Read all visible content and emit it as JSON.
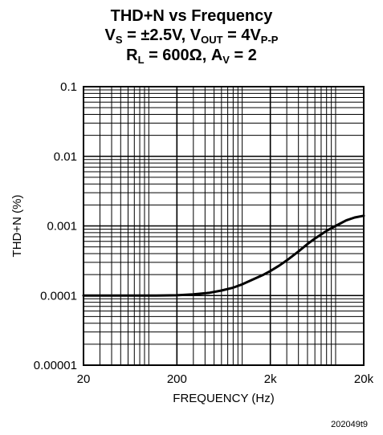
{
  "title": {
    "line1": "THD+N vs Frequency",
    "line2": {
      "a": "V",
      "a_sub": "S",
      "b": " = ±2.5V, V",
      "b_sub": "OUT",
      "c": " = 4V",
      "c_sub": "P-P"
    },
    "line3": {
      "a": "R",
      "a_sub": "L",
      "b": " = 600Ω, A",
      "b_sub": "V",
      "c": " = 2"
    }
  },
  "figure_code": "202049t9",
  "chart_data": {
    "type": "line",
    "xlabel": "FREQUENCY (Hz)",
    "ylabel": "THD+N (%)",
    "x_scale": "log",
    "y_scale": "log",
    "xlim": [
      20,
      20000
    ],
    "ylim": [
      1e-05,
      0.1
    ],
    "x_ticks": [
      20,
      200,
      2000,
      20000
    ],
    "x_tick_labels": [
      "20",
      "200",
      "2k",
      "20k"
    ],
    "y_ticks": [
      1e-05,
      0.0001,
      0.001,
      0.01,
      0.1
    ],
    "y_tick_labels": [
      "0.00001",
      "0.0001",
      "0.001",
      "0.01",
      "0.1"
    ],
    "grid": true,
    "series": [
      {
        "color": "#000000",
        "x": [
          20,
          30,
          50,
          80,
          120,
          200,
          300,
          450,
          600,
          800,
          1000,
          1300,
          1700,
          2000,
          2500,
          3000,
          4000,
          5000,
          6000,
          8000,
          10000,
          13000,
          16000,
          20000
        ],
        "y": [
          0.0001,
          0.0001,
          0.0001,
          0.0001,
          0.0001,
          0.000101,
          0.000104,
          0.00011,
          0.000118,
          0.00013,
          0.000145,
          0.00017,
          0.0002,
          0.000225,
          0.00027,
          0.00032,
          0.00043,
          0.00055,
          0.00066,
          0.00085,
          0.001,
          0.0012,
          0.00132,
          0.0014
        ]
      }
    ]
  }
}
